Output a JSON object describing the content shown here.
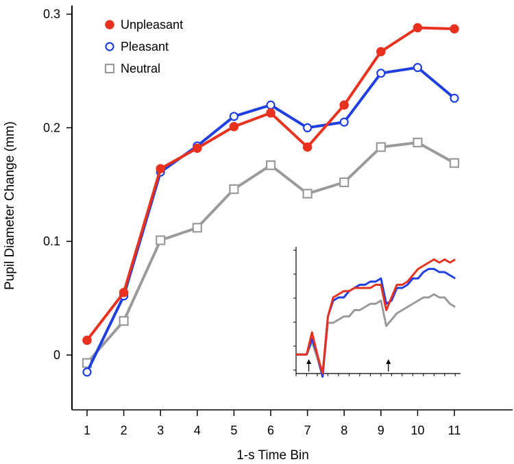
{
  "chart_data": [
    {
      "type": "line",
      "title": "",
      "xlabel": "1-s Time Bin",
      "ylabel": "Pupil Diameter Change (mm)",
      "x": [
        1,
        2,
        3,
        4,
        5,
        6,
        7,
        8,
        9,
        10,
        11
      ],
      "x_tick_labels": [
        "1",
        "2",
        "3",
        "4",
        "5",
        "6",
        "7",
        "8",
        "9",
        "10",
        "11"
      ],
      "y_ticks": [
        0,
        0.1,
        0.2,
        0.3
      ],
      "y_tick_labels": [
        "0",
        "0.1",
        "0.2",
        "0.3"
      ],
      "ylim": [
        -0.05,
        0.31
      ],
      "legend_position": "top-left",
      "series": [
        {
          "name": "Unpleasant",
          "color": "#e8311f",
          "marker": "filled-circle",
          "values": [
            0.013,
            0.055,
            0.164,
            0.182,
            0.201,
            0.213,
            0.183,
            0.22,
            0.267,
            0.288,
            0.287
          ]
        },
        {
          "name": "Pleasant",
          "color": "#1f3fe0",
          "marker": "open-circle",
          "values": [
            -0.015,
            0.052,
            0.161,
            0.184,
            0.21,
            0.22,
            0.2,
            0.205,
            0.248,
            0.253,
            0.226
          ]
        },
        {
          "name": "Neutral",
          "color": "#9a9a9a",
          "marker": "open-square",
          "values": [
            -0.007,
            0.03,
            0.101,
            0.112,
            0.146,
            0.167,
            0.142,
            0.152,
            0.183,
            0.187,
            0.169
          ]
        }
      ]
    },
    {
      "type": "line",
      "title": "",
      "note": "inset: continuous pupil trace, unlabeled axes, two arrow markers on x-axis",
      "x": [
        0,
        0.5,
        1,
        1.5,
        2,
        2.5,
        3,
        3.5,
        4,
        4.5,
        5,
        5.5,
        6,
        6.5,
        7,
        7.5,
        8,
        8.5,
        9,
        9.5,
        10,
        10.5,
        11,
        11.5,
        12,
        12.5,
        13,
        13.5,
        14,
        14.5,
        15
      ],
      "arrows_at_x": [
        1.2,
        8.7
      ],
      "ylim": [
        -0.06,
        0.34
      ],
      "xlim": [
        0,
        15.5
      ],
      "series": [
        {
          "name": "Unpleasant",
          "color": "#e8311f",
          "values": [
            0.0,
            0.0,
            0.0,
            0.07,
            0.0,
            -0.06,
            0.12,
            0.18,
            0.19,
            0.2,
            0.2,
            0.21,
            0.21,
            0.21,
            0.21,
            0.22,
            0.22,
            0.14,
            0.18,
            0.22,
            0.22,
            0.23,
            0.25,
            0.27,
            0.28,
            0.29,
            0.3,
            0.29,
            0.3,
            0.29,
            0.3
          ]
        },
        {
          "name": "Pleasant",
          "color": "#1f3fe0",
          "values": [
            0.0,
            0.0,
            0.0,
            0.05,
            0.0,
            -0.07,
            0.12,
            0.17,
            0.18,
            0.18,
            0.2,
            0.21,
            0.22,
            0.22,
            0.23,
            0.23,
            0.24,
            0.16,
            0.17,
            0.21,
            0.21,
            0.22,
            0.24,
            0.24,
            0.26,
            0.27,
            0.27,
            0.26,
            0.26,
            0.25,
            0.24
          ]
        },
        {
          "name": "Neutral",
          "color": "#9a9a9a",
          "values": [
            0.0,
            0.0,
            0.0,
            0.04,
            -0.01,
            -0.07,
            0.1,
            0.1,
            0.11,
            0.12,
            0.12,
            0.14,
            0.14,
            0.15,
            0.16,
            0.16,
            0.17,
            0.09,
            0.11,
            0.13,
            0.14,
            0.15,
            0.16,
            0.17,
            0.18,
            0.18,
            0.19,
            0.18,
            0.18,
            0.16,
            0.15
          ]
        }
      ]
    }
  ]
}
